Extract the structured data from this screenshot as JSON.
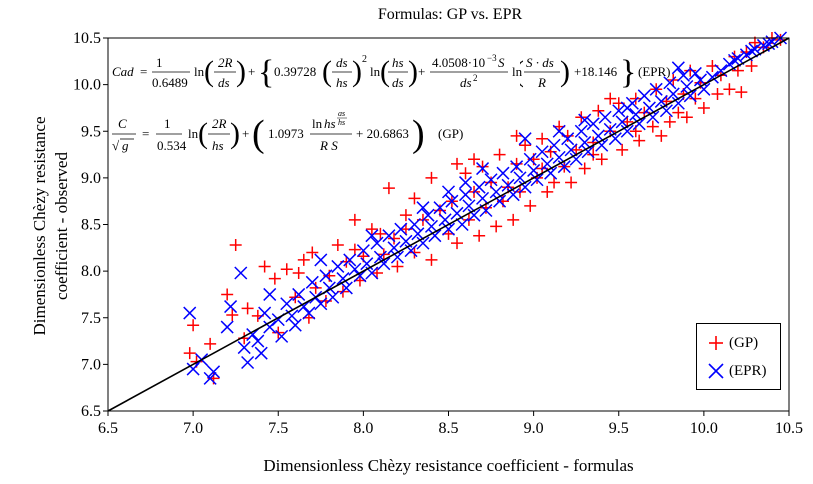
{
  "chart_data": {
    "type": "scatter",
    "title": "Formulas: GP vs. EPR",
    "xlabel": "Dimensionless Chèzy resistance coefficient - formulas",
    "ylabel_line1": "Dimensionless Chèzy resistance",
    "ylabel_line2": "coefficient - observed",
    "xlim": [
      6.5,
      10.5
    ],
    "ylim": [
      6.5,
      10.5
    ],
    "x_ticks": [
      "6.5",
      "7.0",
      "7.5",
      "8.0",
      "8.5",
      "9.0",
      "9.5",
      "10.0",
      "10.5"
    ],
    "y_ticks": [
      "6.5",
      "7.0",
      "7.5",
      "8.0",
      "8.5",
      "9.0",
      "9.5",
      "10.0",
      "10.5"
    ],
    "reference_line": {
      "from": [
        6.5,
        6.5
      ],
      "to": [
        10.5,
        10.5
      ],
      "color": "#000000"
    },
    "legend_position": "bottom-right",
    "formulas": {
      "epr": "Cad = 1/0.6489 ln(2R/ds) + {0.39728 (ds/hs)^2 ln(hs/ds) + 4.0508·10^-3 S / ds^2 ln(S·ds/R) + 18.146}   (EPR)",
      "gp": "C/√g = 1/0.534 ln(2R/hs) + (1.0973 ln hs^(ds/hs) / RS + 20.6863)   (GP)"
    },
    "series": [
      {
        "name": "(GP)",
        "marker": "plus",
        "color": "#ff0000",
        "points": [
          [
            6.98,
            7.12
          ],
          [
            7.0,
            7.42
          ],
          [
            7.02,
            7.03
          ],
          [
            7.1,
            7.22
          ],
          [
            7.12,
            6.85
          ],
          [
            7.2,
            7.75
          ],
          [
            7.23,
            7.53
          ],
          [
            7.25,
            8.28
          ],
          [
            7.3,
            7.28
          ],
          [
            7.32,
            7.6
          ],
          [
            7.38,
            7.52
          ],
          [
            7.42,
            8.05
          ],
          [
            7.48,
            7.92
          ],
          [
            7.5,
            7.34
          ],
          [
            7.55,
            8.02
          ],
          [
            7.6,
            7.72
          ],
          [
            7.62,
            7.98
          ],
          [
            7.65,
            8.12
          ],
          [
            7.68,
            7.5
          ],
          [
            7.7,
            8.2
          ],
          [
            7.72,
            7.82
          ],
          [
            7.78,
            7.68
          ],
          [
            7.8,
            7.95
          ],
          [
            7.85,
            8.28
          ],
          [
            7.88,
            7.78
          ],
          [
            7.9,
            8.1
          ],
          [
            7.95,
            8.23
          ],
          [
            7.98,
            7.9
          ],
          [
            8.0,
            8.16
          ],
          [
            8.05,
            8.45
          ],
          [
            8.08,
            7.98
          ],
          [
            8.1,
            8.4
          ],
          [
            8.12,
            8.18
          ],
          [
            8.15,
            8.89
          ],
          [
            8.18,
            8.35
          ],
          [
            8.2,
            8.05
          ],
          [
            8.25,
            8.45
          ],
          [
            8.3,
            8.2
          ],
          [
            8.35,
            8.55
          ],
          [
            8.4,
            8.12
          ],
          [
            8.45,
            8.65
          ],
          [
            8.4,
            9.0
          ],
          [
            8.5,
            8.4
          ],
          [
            8.52,
            8.75
          ],
          [
            8.55,
            8.3
          ],
          [
            8.6,
            9.05
          ],
          [
            8.62,
            8.55
          ],
          [
            8.65,
            8.85
          ],
          [
            8.68,
            8.38
          ],
          [
            8.7,
            9.12
          ],
          [
            8.72,
            8.68
          ],
          [
            8.75,
            8.95
          ],
          [
            8.78,
            8.48
          ],
          [
            8.8,
            9.25
          ],
          [
            8.82,
            8.75
          ],
          [
            8.85,
            8.9
          ],
          [
            8.88,
            8.55
          ],
          [
            8.9,
            9.15
          ],
          [
            8.92,
            8.85
          ],
          [
            8.95,
            9.35
          ],
          [
            8.98,
            8.7
          ],
          [
            9.0,
            9.2
          ],
          [
            9.02,
            9.0
          ],
          [
            9.05,
            9.42
          ],
          [
            9.08,
            8.85
          ],
          [
            9.1,
            9.28
          ],
          [
            9.12,
            8.95
          ],
          [
            9.15,
            9.55
          ],
          [
            9.18,
            9.12
          ],
          [
            9.2,
            9.45
          ],
          [
            9.22,
            8.95
          ],
          [
            9.25,
            9.3
          ],
          [
            9.28,
            9.65
          ],
          [
            9.3,
            9.1
          ],
          [
            9.35,
            9.38
          ],
          [
            9.38,
            9.72
          ],
          [
            9.4,
            9.2
          ],
          [
            9.45,
            9.5
          ],
          [
            9.5,
            9.8
          ],
          [
            9.52,
            9.3
          ],
          [
            9.55,
            9.6
          ],
          [
            9.6,
            9.85
          ],
          [
            9.62,
            9.4
          ],
          [
            9.65,
            9.7
          ],
          [
            9.7,
            9.55
          ],
          [
            9.72,
            9.95
          ],
          [
            9.75,
            9.45
          ],
          [
            9.78,
            9.82
          ],
          [
            9.8,
            9.6
          ],
          [
            9.82,
            10.05
          ],
          [
            9.85,
            9.7
          ],
          [
            9.88,
            9.9
          ],
          [
            9.9,
            9.65
          ],
          [
            9.92,
            10.15
          ],
          [
            9.95,
            9.85
          ],
          [
            9.98,
            10.02
          ],
          [
            10.0,
            9.75
          ],
          [
            10.05,
            10.2
          ],
          [
            10.08,
            9.9
          ],
          [
            10.1,
            10.1
          ],
          [
            10.15,
            9.95
          ],
          [
            10.18,
            10.3
          ],
          [
            10.2,
            10.15
          ],
          [
            10.22,
            9.92
          ],
          [
            10.25,
            10.35
          ],
          [
            10.28,
            10.2
          ],
          [
            10.3,
            10.45
          ],
          [
            10.35,
            10.4
          ],
          [
            10.4,
            10.5
          ],
          [
            10.45,
            10.48
          ],
          [
            8.3,
            8.78
          ],
          [
            8.55,
            9.15
          ],
          [
            8.9,
            9.45
          ],
          [
            9.05,
            9.1
          ],
          [
            9.45,
            9.85
          ],
          [
            9.6,
            9.5
          ],
          [
            7.95,
            8.55
          ],
          [
            8.25,
            8.6
          ],
          [
            8.65,
            9.2
          ],
          [
            9.35,
            9.25
          ]
        ]
      },
      {
        "name": "(EPR)",
        "marker": "x",
        "color": "#0000ff",
        "points": [
          [
            6.98,
            7.55
          ],
          [
            7.0,
            6.95
          ],
          [
            7.05,
            7.05
          ],
          [
            7.1,
            6.85
          ],
          [
            7.12,
            6.92
          ],
          [
            7.2,
            7.4
          ],
          [
            7.22,
            7.62
          ],
          [
            7.28,
            7.98
          ],
          [
            7.3,
            7.18
          ],
          [
            7.32,
            7.02
          ],
          [
            7.35,
            7.32
          ],
          [
            7.38,
            7.25
          ],
          [
            7.4,
            7.12
          ],
          [
            7.42,
            7.55
          ],
          [
            7.45,
            7.4
          ],
          [
            7.5,
            7.48
          ],
          [
            7.52,
            7.3
          ],
          [
            7.55,
            7.65
          ],
          [
            7.58,
            7.52
          ],
          [
            7.6,
            7.42
          ],
          [
            7.62,
            7.75
          ],
          [
            7.65,
            7.62
          ],
          [
            7.68,
            7.55
          ],
          [
            7.7,
            7.88
          ],
          [
            7.72,
            7.72
          ],
          [
            7.75,
            7.65
          ],
          [
            7.78,
            7.95
          ],
          [
            7.8,
            7.82
          ],
          [
            7.82,
            7.72
          ],
          [
            7.85,
            8.05
          ],
          [
            7.88,
            7.92
          ],
          [
            7.9,
            7.82
          ],
          [
            7.92,
            8.12
          ],
          [
            7.95,
            8.02
          ],
          [
            7.98,
            7.95
          ],
          [
            8.0,
            8.22
          ],
          [
            8.02,
            8.08
          ],
          [
            8.05,
            7.98
          ],
          [
            8.08,
            8.3
          ],
          [
            8.1,
            8.15
          ],
          [
            8.12,
            8.08
          ],
          [
            8.15,
            8.38
          ],
          [
            8.18,
            8.25
          ],
          [
            8.2,
            8.15
          ],
          [
            8.22,
            8.45
          ],
          [
            8.25,
            8.32
          ],
          [
            8.28,
            8.22
          ],
          [
            8.3,
            8.5
          ],
          [
            8.32,
            8.4
          ],
          [
            8.35,
            8.3
          ],
          [
            8.38,
            8.6
          ],
          [
            8.4,
            8.48
          ],
          [
            8.42,
            8.38
          ],
          [
            8.45,
            8.68
          ],
          [
            8.48,
            8.55
          ],
          [
            8.5,
            8.45
          ],
          [
            8.52,
            8.75
          ],
          [
            8.55,
            8.62
          ],
          [
            8.58,
            8.5
          ],
          [
            8.6,
            8.82
          ],
          [
            8.62,
            8.7
          ],
          [
            8.65,
            8.6
          ],
          [
            8.68,
            8.9
          ],
          [
            8.7,
            8.78
          ],
          [
            8.72,
            8.65
          ],
          [
            8.75,
            8.98
          ],
          [
            8.78,
            8.85
          ],
          [
            8.8,
            8.75
          ],
          [
            8.82,
            9.05
          ],
          [
            8.85,
            8.92
          ],
          [
            8.88,
            8.82
          ],
          [
            8.9,
            9.12
          ],
          [
            8.92,
            9.0
          ],
          [
            8.95,
            8.9
          ],
          [
            8.98,
            9.2
          ],
          [
            9.0,
            9.08
          ],
          [
            9.02,
            8.98
          ],
          [
            9.05,
            9.28
          ],
          [
            9.08,
            9.15
          ],
          [
            9.1,
            9.05
          ],
          [
            9.12,
            9.35
          ],
          [
            9.15,
            9.22
          ],
          [
            9.18,
            9.12
          ],
          [
            9.2,
            9.42
          ],
          [
            9.22,
            9.3
          ],
          [
            9.25,
            9.2
          ],
          [
            9.28,
            9.5
          ],
          [
            9.3,
            9.38
          ],
          [
            9.32,
            9.28
          ],
          [
            9.35,
            9.58
          ],
          [
            9.38,
            9.45
          ],
          [
            9.4,
            9.35
          ],
          [
            9.42,
            9.65
          ],
          [
            9.45,
            9.52
          ],
          [
            9.48,
            9.42
          ],
          [
            9.5,
            9.72
          ],
          [
            9.52,
            9.6
          ],
          [
            9.55,
            9.5
          ],
          [
            9.58,
            9.8
          ],
          [
            9.6,
            9.68
          ],
          [
            9.62,
            9.58
          ],
          [
            9.65,
            9.88
          ],
          [
            9.68,
            9.75
          ],
          [
            9.7,
            9.65
          ],
          [
            9.72,
            9.95
          ],
          [
            9.75,
            9.82
          ],
          [
            9.78,
            9.72
          ],
          [
            9.8,
            10.02
          ],
          [
            9.82,
            9.9
          ],
          [
            9.85,
            9.8
          ],
          [
            9.88,
            10.1
          ],
          [
            9.9,
            9.98
          ],
          [
            9.92,
            9.88
          ],
          [
            9.95,
            10.12
          ],
          [
            9.98,
            10.05
          ],
          [
            10.0,
            9.95
          ],
          [
            10.05,
            10.08
          ],
          [
            10.1,
            10.15
          ],
          [
            10.15,
            10.22
          ],
          [
            10.2,
            10.28
          ],
          [
            10.25,
            10.32
          ],
          [
            10.3,
            10.38
          ],
          [
            10.35,
            10.42
          ],
          [
            10.4,
            10.46
          ],
          [
            10.45,
            10.5
          ],
          [
            10.38,
            10.44
          ],
          [
            10.28,
            10.36
          ],
          [
            10.18,
            10.26
          ],
          [
            8.95,
            9.42
          ],
          [
            8.6,
            8.95
          ],
          [
            8.35,
            8.68
          ],
          [
            9.3,
            9.62
          ],
          [
            9.55,
            9.75
          ],
          [
            7.75,
            8.12
          ],
          [
            8.05,
            8.38
          ],
          [
            8.7,
            9.1
          ],
          [
            9.15,
            9.5
          ],
          [
            9.85,
            10.18
          ],
          [
            7.45,
            7.75
          ],
          [
            8.5,
            8.85
          ]
        ]
      }
    ]
  }
}
